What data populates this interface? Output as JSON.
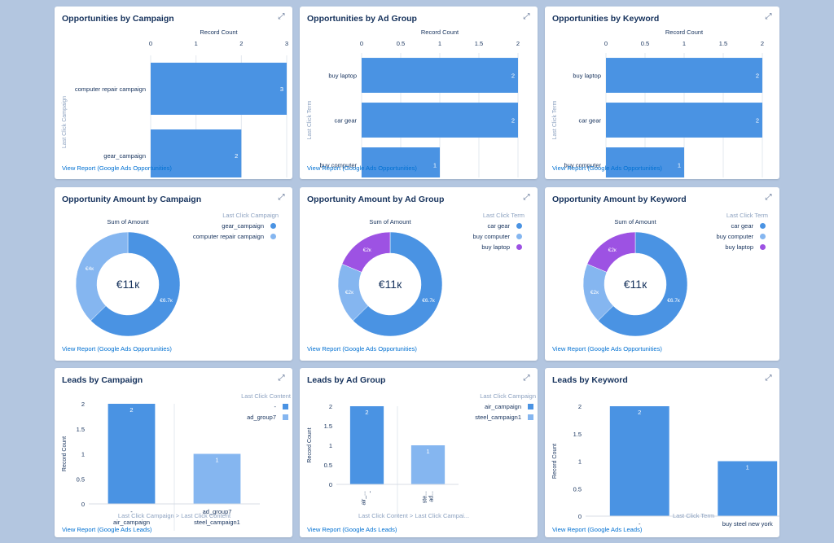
{
  "colors": {
    "primary": "#4a93e3",
    "light": "#85b6f0",
    "purple": "#9d52e3",
    "link": "#0070d2",
    "background": "#b3c6e0"
  },
  "common": {
    "view_opp_link": "View Report (Google Ads Opportunities)",
    "view_leads_link": "View Report (Google Ads Leads)",
    "expand_icon": "expand-icon"
  },
  "cards": {
    "opp_campaign": {
      "title": "Opportunities by Campaign",
      "axis_title": "Record Count",
      "y_label": "Last Click Campaign"
    },
    "opp_adgroup": {
      "title": "Opportunities by Ad Group",
      "axis_title": "Record Count",
      "y_label": "Last Click Term"
    },
    "opp_keyword": {
      "title": "Opportunities by Keyword",
      "axis_title": "Record Count",
      "y_label": "Last Click Term"
    },
    "amt_campaign": {
      "title": "Opportunity Amount by Campaign",
      "sum_label": "Sum of Amount",
      "center": "€11к",
      "legend_title": "Last Click Campaign"
    },
    "amt_adgroup": {
      "title": "Opportunity Amount by Ad Group",
      "sum_label": "Sum of Amount",
      "center": "€11к",
      "legend_title": "Last Click Term"
    },
    "amt_keyword": {
      "title": "Opportunity Amount by Keyword",
      "sum_label": "Sum of Amount",
      "center": "€11к",
      "legend_title": "Last Click Term"
    },
    "leads_campaign": {
      "title": "Leads by Campaign",
      "legend_title": "Last Click Content",
      "y_label": "Record Count",
      "x_label_a": "Last Click Campaign",
      "x_sep": ">",
      "x_label_b": "Last Click Content"
    },
    "leads_adgroup": {
      "title": "Leads by Ad Group",
      "legend_title": "Last Click Campaign",
      "y_label": "Record Count",
      "x_label_a": "Last Click Content",
      "x_sep": ">",
      "x_label_b": "Last Click Campai..."
    },
    "leads_keyword": {
      "title": "Leads by Keyword",
      "y_label": "Record Count",
      "x_label": "Last Click Term"
    }
  },
  "chart_data": [
    {
      "type": "bar",
      "orientation": "horizontal",
      "title": "Opportunities by Campaign",
      "xlabel": "Record Count",
      "ylabel": "Last Click Campaign",
      "categories": [
        "computer repair campaign",
        "gear_campaign"
      ],
      "values": [
        3,
        2
      ],
      "ticks": [
        "0",
        "1",
        "2",
        "3"
      ],
      "xlim": [
        0,
        3
      ]
    },
    {
      "type": "bar",
      "orientation": "horizontal",
      "title": "Opportunities by Ad Group",
      "xlabel": "Record Count",
      "ylabel": "Last Click Term",
      "categories": [
        "buy laptop",
        "car gear",
        "buy computer"
      ],
      "values": [
        2,
        2,
        1
      ],
      "ticks": [
        "0",
        "0.5",
        "1",
        "1.5",
        "2"
      ],
      "xlim": [
        0,
        2
      ]
    },
    {
      "type": "bar",
      "orientation": "horizontal",
      "title": "Opportunities by Keyword",
      "xlabel": "Record Count",
      "ylabel": "Last Click Term",
      "categories": [
        "buy laptop",
        "car gear",
        "buy computer"
      ],
      "values": [
        2,
        2,
        1
      ],
      "ticks": [
        "0",
        "0.5",
        "1",
        "1.5",
        "2"
      ],
      "xlim": [
        0,
        2
      ]
    },
    {
      "type": "pie",
      "donut": true,
      "title": "Opportunity Amount by Campaign",
      "value_label": "Sum of Amount",
      "center_label": "€11к",
      "legend_title": "Last Click Campaign",
      "legend_position": "top-right",
      "slices": [
        {
          "name": "gear_campaign",
          "value": 6.7,
          "label": "€6.7к",
          "color": "#4a93e3"
        },
        {
          "name": "computer repair campaign",
          "value": 4,
          "label": "€4к",
          "color": "#85b6f0"
        }
      ]
    },
    {
      "type": "pie",
      "donut": true,
      "title": "Opportunity Amount by Ad Group",
      "value_label": "Sum of Amount",
      "center_label": "€11к",
      "legend_title": "Last Click Term",
      "legend_position": "top-right",
      "slices": [
        {
          "name": "car gear",
          "value": 6.7,
          "label": "€6.7к",
          "color": "#4a93e3"
        },
        {
          "name": "buy computer",
          "value": 2,
          "label": "€2к",
          "color": "#85b6f0"
        },
        {
          "name": "buy laptop",
          "value": 2,
          "label": "€2к",
          "color": "#9d52e3"
        }
      ]
    },
    {
      "type": "pie",
      "donut": true,
      "title": "Opportunity Amount by Keyword",
      "value_label": "Sum of Amount",
      "center_label": "€11к",
      "legend_title": "Last Click Term",
      "legend_position": "top-right",
      "slices": [
        {
          "name": "car gear",
          "value": 6.7,
          "label": "€6.7к",
          "color": "#4a93e3"
        },
        {
          "name": "buy computer",
          "value": 2,
          "label": "€2к",
          "color": "#85b6f0"
        },
        {
          "name": "buy laptop",
          "value": 2,
          "label": "€2к",
          "color": "#9d52e3"
        }
      ]
    },
    {
      "type": "bar",
      "orientation": "vertical",
      "title": "Leads by Campaign",
      "ylabel": "Record Count",
      "xlabel": "Last Click Campaign > Last Click Content",
      "legend_title": "Last Click Content",
      "ticks": [
        "0",
        "0.5",
        "1",
        "1.5",
        "2"
      ],
      "ylim": [
        0,
        2
      ],
      "legend": [
        {
          "name": "-",
          "color": "#4a93e3"
        },
        {
          "name": "ad_group7",
          "color": "#85b6f0"
        }
      ],
      "groups": [
        {
          "outer": "air_campaign",
          "inner": "-",
          "value": 2,
          "color": "#4a93e3"
        },
        {
          "outer": "steel_campaign1",
          "inner": "ad_group7",
          "value": 1,
          "color": "#85b6f0"
        }
      ]
    },
    {
      "type": "bar",
      "orientation": "vertical",
      "title": "Leads by Ad Group",
      "ylabel": "Record Count",
      "xlabel": "Last Click Content > Last Click Campai...",
      "legend_title": "Last Click Campaign",
      "ticks": [
        "0",
        "0.5",
        "1",
        "1.5",
        "2"
      ],
      "ylim": [
        0,
        2
      ],
      "legend": [
        {
          "name": "air_campaign",
          "color": "#4a93e3"
        },
        {
          "name": "steel_campaign1",
          "color": "#85b6f0"
        }
      ],
      "groups": [
        {
          "outer": "-",
          "inner": "air_...",
          "value": 2,
          "color": "#4a93e3"
        },
        {
          "outer": "ad...",
          "inner": "ste...",
          "value": 1,
          "color": "#85b6f0"
        }
      ]
    },
    {
      "type": "bar",
      "orientation": "vertical",
      "title": "Leads by Keyword",
      "ylabel": "Record Count",
      "xlabel": "Last Click Term",
      "ticks": [
        "0",
        "0.5",
        "1",
        "1.5",
        "2"
      ],
      "ylim": [
        0,
        2
      ],
      "categories": [
        "-",
        "buy steel new york"
      ],
      "values": [
        2,
        1
      ],
      "color": "#4a93e3"
    }
  ]
}
